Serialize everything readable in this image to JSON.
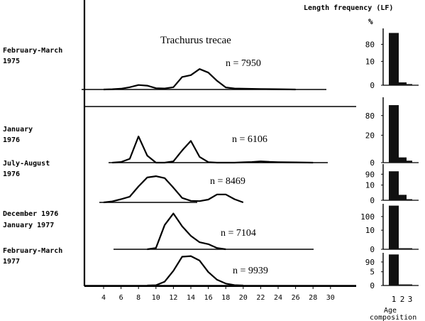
{
  "header": {
    "title": "Length frequency (LF)",
    "percent_symbol": "%"
  },
  "species_label": "Trachurus trecae",
  "age_axis": {
    "ticks": [
      "1",
      "2",
      "3"
    ],
    "label_line1": "Age",
    "label_line2": "composition"
  },
  "chart_data": [
    {
      "type": "line",
      "title": "Trachurus trecae",
      "xlabel": "",
      "ylabel": "",
      "xlim": [
        3,
        31
      ],
      "x_ticks": [
        "4",
        "6",
        "8",
        "10",
        "12",
        "14",
        "16",
        "18",
        "20",
        "22",
        "24",
        "26",
        "28",
        "30"
      ],
      "panels": [
        {
          "period": [
            "February-March",
            "1975"
          ],
          "n_label": "n = 7950",
          "x": [
            4,
            5,
            6,
            7,
            8,
            9,
            10,
            11,
            12,
            13,
            14,
            15,
            16,
            17,
            18,
            19,
            20,
            21,
            22,
            24,
            26
          ],
          "y": [
            0,
            0.02,
            0.06,
            0.18,
            0.35,
            0.3,
            0.1,
            0.08,
            0.18,
            0.98,
            1.12,
            1.6,
            1.32,
            0.68,
            0.16,
            0.08,
            0.06,
            0.05,
            0.04,
            0.02,
            0
          ]
        },
        {
          "period": [
            "January",
            "1976"
          ],
          "n_label": "n = 6106",
          "x": [
            5,
            6,
            7,
            8,
            9,
            10,
            11,
            12,
            13,
            14,
            15,
            16,
            17,
            18,
            19,
            20,
            21,
            22,
            23,
            24,
            25,
            26,
            28
          ],
          "y": [
            0,
            0.05,
            0.3,
            2.05,
            0.55,
            0,
            0,
            0.1,
            0.95,
            1.7,
            0.45,
            0.04,
            0,
            0,
            0,
            0.03,
            0.05,
            0.1,
            0.06,
            0.04,
            0.03,
            0.02,
            0
          ]
        },
        {
          "period": [
            "July-August",
            "1976"
          ],
          "n_label": "n = 8469",
          "x": [
            4,
            5,
            6,
            7,
            8,
            9,
            10,
            11,
            12,
            13,
            14,
            15,
            16,
            17,
            18,
            19,
            20
          ],
          "y": [
            0,
            0.08,
            0.25,
            0.45,
            1.25,
            1.95,
            2.05,
            1.9,
            1.15,
            0.35,
            0.12,
            0.1,
            0.22,
            0.62,
            0.62,
            0.25,
            0
          ]
        },
        {
          "period": [
            "December 1976",
            "January  1977"
          ],
          "n_label": "n = 7104",
          "x": [
            9,
            10,
            11,
            12,
            13,
            14,
            15,
            16,
            17,
            18
          ],
          "y": [
            0,
            0.1,
            1.9,
            2.8,
            1.8,
            1.05,
            0.55,
            0.4,
            0.1,
            0
          ]
        },
        {
          "period": [
            "February-March",
            "1977"
          ],
          "n_label": "n = 9939",
          "x": [
            9,
            10,
            11,
            12,
            13,
            14,
            15,
            16,
            17,
            18,
            19,
            20
          ],
          "y": [
            0,
            0.02,
            0.3,
            1.15,
            2.25,
            2.3,
            1.95,
            1.05,
            0.45,
            0.15,
            0.03,
            0
          ]
        }
      ]
    },
    {
      "type": "bar",
      "title": "Length frequency (LF)",
      "categories": [
        "1",
        "2",
        "3"
      ],
      "xlabel": "Age composition",
      "ylabel": "%",
      "panels": [
        {
          "axis_labels": [
            "80",
            "10",
            "0"
          ],
          "values": [
            92,
            5,
            2
          ]
        },
        {
          "axis_labels": [
            "80",
            "20",
            "0"
          ],
          "values": [
            88,
            8,
            3
          ]
        },
        {
          "axis_labels": [
            "90",
            "10",
            "0"
          ],
          "values": [
            80,
            15,
            3
          ]
        },
        {
          "axis_labels": [
            "100",
            "10",
            "0"
          ],
          "values": [
            96,
            2,
            1
          ]
        },
        {
          "axis_labels": [
            "90",
            "5",
            "0"
          ],
          "values": [
            95,
            3,
            1
          ]
        }
      ]
    }
  ]
}
